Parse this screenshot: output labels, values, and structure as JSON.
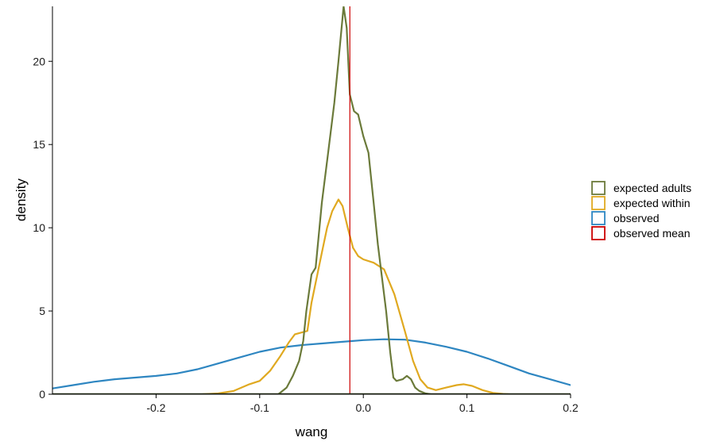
{
  "chart_data": {
    "type": "line",
    "xlabel": "wang",
    "ylabel": "density",
    "xlim": [
      -0.3,
      0.2
    ],
    "ylim": [
      0,
      23.3
    ],
    "x_ticks": [
      -0.2,
      -0.1,
      0.0,
      0.1,
      0.2
    ],
    "x_tick_labels": [
      "-0.2",
      "-0.1",
      "0.0",
      "0.1",
      "0.2"
    ],
    "y_ticks": [
      0,
      5,
      10,
      15,
      20
    ],
    "y_tick_labels": [
      "0",
      "5",
      "10",
      "15",
      "20"
    ],
    "grid": false,
    "legend_position": "right",
    "series": [
      {
        "name": "expected adults",
        "color": "#6b7a3a",
        "points": [
          [
            -0.082,
            0
          ],
          [
            -0.074,
            0.4
          ],
          [
            -0.068,
            1.1
          ],
          [
            -0.062,
            2.0
          ],
          [
            -0.058,
            3.2
          ],
          [
            -0.055,
            5.0
          ],
          [
            -0.05,
            7.2
          ],
          [
            -0.046,
            7.6
          ],
          [
            -0.04,
            11.5
          ],
          [
            -0.034,
            14.5
          ],
          [
            -0.028,
            17.5
          ],
          [
            -0.024,
            20.0
          ],
          [
            -0.019,
            23.3
          ],
          [
            -0.016,
            22.0
          ],
          [
            -0.013,
            18.0
          ],
          [
            -0.009,
            17.0
          ],
          [
            -0.005,
            16.8
          ],
          [
            0.0,
            15.5
          ],
          [
            0.005,
            14.5
          ],
          [
            0.01,
            11.5
          ],
          [
            0.014,
            9.0
          ],
          [
            0.018,
            7.0
          ],
          [
            0.022,
            5.0
          ],
          [
            0.026,
            2.5
          ],
          [
            0.029,
            1.0
          ],
          [
            0.032,
            0.8
          ],
          [
            0.038,
            0.9
          ],
          [
            0.042,
            1.1
          ],
          [
            0.046,
            0.9
          ],
          [
            0.05,
            0.4
          ],
          [
            0.054,
            0.2
          ],
          [
            0.06,
            0.05
          ],
          [
            0.065,
            0
          ]
        ]
      },
      {
        "name": "expected within",
        "color": "#e0a920",
        "points": [
          [
            -0.155,
            0
          ],
          [
            -0.14,
            0.05
          ],
          [
            -0.125,
            0.2
          ],
          [
            -0.11,
            0.6
          ],
          [
            -0.1,
            0.8
          ],
          [
            -0.09,
            1.4
          ],
          [
            -0.08,
            2.3
          ],
          [
            -0.072,
            3.1
          ],
          [
            -0.066,
            3.6
          ],
          [
            -0.06,
            3.7
          ],
          [
            -0.054,
            3.8
          ],
          [
            -0.05,
            5.5
          ],
          [
            -0.045,
            7.0
          ],
          [
            -0.04,
            8.5
          ],
          [
            -0.035,
            10.0
          ],
          [
            -0.03,
            11.0
          ],
          [
            -0.024,
            11.7
          ],
          [
            -0.02,
            11.3
          ],
          [
            -0.015,
            10.0
          ],
          [
            -0.01,
            8.8
          ],
          [
            -0.005,
            8.3
          ],
          [
            0.0,
            8.1
          ],
          [
            0.01,
            7.9
          ],
          [
            0.02,
            7.5
          ],
          [
            0.03,
            6.0
          ],
          [
            0.04,
            3.8
          ],
          [
            0.048,
            2.0
          ],
          [
            0.055,
            0.9
          ],
          [
            0.062,
            0.4
          ],
          [
            0.07,
            0.25
          ],
          [
            0.08,
            0.4
          ],
          [
            0.09,
            0.55
          ],
          [
            0.097,
            0.6
          ],
          [
            0.105,
            0.5
          ],
          [
            0.115,
            0.25
          ],
          [
            0.125,
            0.08
          ],
          [
            0.135,
            0.02
          ],
          [
            0.14,
            0
          ]
        ]
      },
      {
        "name": "observed",
        "color": "#2e86c1",
        "points": [
          [
            -0.3,
            0.35
          ],
          [
            -0.28,
            0.55
          ],
          [
            -0.26,
            0.75
          ],
          [
            -0.24,
            0.9
          ],
          [
            -0.22,
            1.0
          ],
          [
            -0.2,
            1.1
          ],
          [
            -0.18,
            1.25
          ],
          [
            -0.16,
            1.5
          ],
          [
            -0.14,
            1.85
          ],
          [
            -0.12,
            2.2
          ],
          [
            -0.1,
            2.55
          ],
          [
            -0.08,
            2.8
          ],
          [
            -0.06,
            2.95
          ],
          [
            -0.04,
            3.05
          ],
          [
            -0.02,
            3.15
          ],
          [
            0.0,
            3.25
          ],
          [
            0.02,
            3.3
          ],
          [
            0.04,
            3.28
          ],
          [
            0.06,
            3.1
          ],
          [
            0.08,
            2.85
          ],
          [
            0.1,
            2.55
          ],
          [
            0.12,
            2.15
          ],
          [
            0.14,
            1.7
          ],
          [
            0.16,
            1.25
          ],
          [
            0.18,
            0.9
          ],
          [
            0.2,
            0.55
          ]
        ]
      },
      {
        "name": "observed mean",
        "color": "#cc0000",
        "vline_x": -0.013
      }
    ]
  }
}
